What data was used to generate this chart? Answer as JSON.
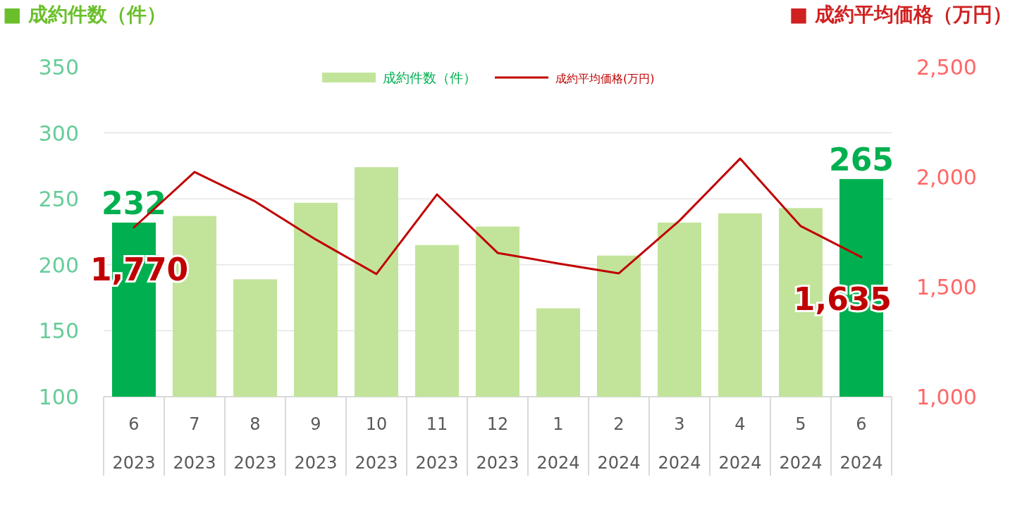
{
  "chart_data": {
    "type": "bar",
    "ylabel": "■ 成約件数（件）",
    "y2label": "■ 成約平均価格（万円）",
    "categories": [
      "6 2023",
      "7 2023",
      "8 2023",
      "9 2023",
      "10 2023",
      "11 2023",
      "12 2023",
      "1 2024",
      "2 2024",
      "3 2024",
      "4 2024",
      "5 2024",
      "6 2024"
    ],
    "series": [
      {
        "name": "成約件数（件）",
        "color": "#c2e49a",
        "colors": [
          "#00b050",
          "#c2e49a",
          "#c2e49a",
          "#c2e49a",
          "#c2e49a",
          "#c2e49a",
          "#c2e49a",
          "#c2e49a",
          "#c2e49a",
          "#c2e49a",
          "#c2e49a",
          "#c2e49a",
          "#00b050"
        ],
        "values": [
          232,
          237,
          189,
          247,
          274,
          215,
          229,
          167,
          207,
          232,
          239,
          243,
          265
        ],
        "value_labels": [
          "232",
          null,
          null,
          null,
          null,
          null,
          null,
          null,
          null,
          null,
          null,
          null,
          "265"
        ]
      },
      {
        "name": "成約平均価格(万円)",
        "type": "line",
        "axis": "y2",
        "color": "#c00000",
        "values": [
          1770,
          2022,
          1888,
          1715,
          1558,
          1920,
          1654,
          1606,
          1561,
          1801,
          2083,
          1776,
          1635
        ],
        "value_labels": [
          "1,770",
          null,
          null,
          null,
          null,
          null,
          null,
          null,
          null,
          null,
          null,
          null,
          "1,635"
        ]
      }
    ],
    "ylim": [
      100,
      350
    ],
    "yticks": [
      100,
      150,
      200,
      250,
      300,
      350
    ],
    "y2lim": [
      1000,
      2500
    ],
    "y2ticks": [
      {
        "value": 1000,
        "label": "1,000"
      },
      {
        "value": 1500,
        "label": "1,500"
      },
      {
        "value": 2000,
        "label": "2,000"
      },
      {
        "value": 2500,
        "label": "2,500"
      }
    ],
    "grid": "y",
    "legend": "top",
    "marker": "none"
  }
}
